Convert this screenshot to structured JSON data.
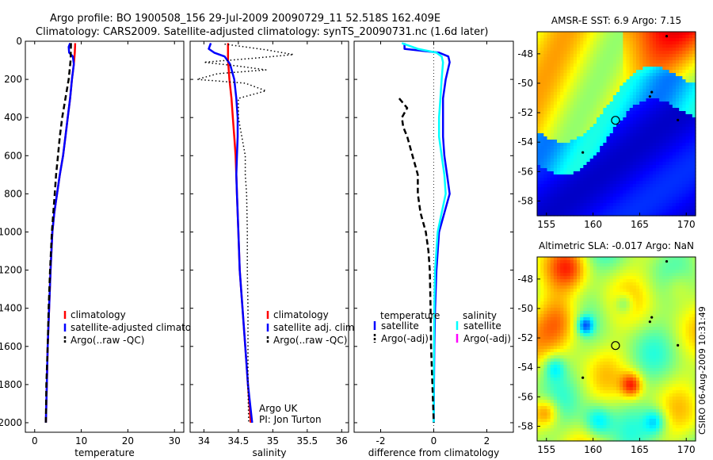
{
  "header": {
    "line1": "Argo profile: BO 1900508_156 29-Jul-2009 20090729_11 52.518S 162.409E",
    "line2": "Climatology: CARS2009. Satellite-adjusted climatology: synTS_20090731.nc (1.6d later)"
  },
  "side_label": "CSIRO 06-Aug-2009 10:31:49",
  "colors": {
    "climatology": "#ff0000",
    "satellite": "#0000ff",
    "satellite_salinity": "#00ffff",
    "argo": "#000000",
    "argo_adj_salinity": "#ff00ff"
  },
  "chart_data": [
    {
      "type": "line",
      "xlabel": "temperature",
      "xlim": [
        -2,
        32
      ],
      "ylim": [
        2050,
        0
      ],
      "y_reversed": true,
      "xticks": [
        "0",
        "10",
        "20",
        "30"
      ],
      "yticks": [
        "0",
        "200",
        "400",
        "600",
        "800",
        "1000",
        "1200",
        "1400",
        "1600",
        "1800",
        "2000"
      ],
      "legend": [
        "climatology",
        "satellite-adjusted climatology",
        "Argo(..raw -QC)"
      ],
      "series": [
        {
          "name": "climatology",
          "color": "#ff0000",
          "dash": "solid",
          "points": [
            [
              8.7,
              10
            ],
            [
              8.6,
              60
            ],
            [
              8.4,
              120
            ],
            [
              8.0,
              200
            ],
            [
              7.6,
              300
            ],
            [
              7.1,
              400
            ],
            [
              6.6,
              500
            ],
            [
              6.1,
              600
            ],
            [
              5.4,
              700
            ],
            [
              4.8,
              800
            ],
            [
              4.2,
              900
            ],
            [
              3.8,
              1000
            ],
            [
              3.4,
              1200
            ],
            [
              3.1,
              1400
            ],
            [
              2.8,
              1600
            ],
            [
              2.6,
              1800
            ],
            [
              2.4,
              2000
            ]
          ]
        },
        {
          "name": "satellite-adjusted climatology",
          "color": "#0000ff",
          "dash": "solid",
          "points": [
            [
              7.6,
              10
            ],
            [
              7.3,
              30
            ],
            [
              7.4,
              60
            ],
            [
              8.2,
              80
            ],
            [
              8.4,
              120
            ],
            [
              8.0,
              200
            ],
            [
              7.6,
              300
            ],
            [
              7.1,
              400
            ],
            [
              6.6,
              500
            ],
            [
              6.1,
              600
            ],
            [
              5.4,
              700
            ],
            [
              4.8,
              800
            ],
            [
              4.2,
              900
            ],
            [
              3.8,
              1000
            ],
            [
              3.4,
              1200
            ],
            [
              3.1,
              1400
            ],
            [
              2.8,
              1600
            ],
            [
              2.6,
              1800
            ],
            [
              2.4,
              2000
            ]
          ]
        },
        {
          "name": "Argo(..raw -QC)",
          "color": "#000000",
          "dash": "dashed",
          "points": [
            [
              7.8,
              10
            ],
            [
              7.7,
              100
            ],
            [
              7.3,
              200
            ],
            [
              6.6,
              300
            ],
            [
              5.9,
              400
            ],
            [
              5.4,
              500
            ],
            [
              5.0,
              600
            ],
            [
              4.6,
              700
            ],
            [
              4.3,
              800
            ],
            [
              4.0,
              900
            ],
            [
              3.7,
              1000
            ],
            [
              3.3,
              1200
            ],
            [
              3.0,
              1400
            ],
            [
              2.8,
              1600
            ],
            [
              2.5,
              1800
            ],
            [
              2.4,
              2000
            ]
          ]
        }
      ]
    },
    {
      "type": "line",
      "xlabel": "salinity",
      "xlim": [
        33.8,
        36.1
      ],
      "ylim": [
        2050,
        0
      ],
      "y_reversed": true,
      "xticks": [
        "34",
        "34.5",
        "35",
        "35.5",
        "36"
      ],
      "legend": [
        "climatology",
        "satellite adj. clim.",
        "Argo(..raw -QC)"
      ],
      "annotation": [
        "Argo UK",
        "PI: Jon Turton"
      ],
      "series": [
        {
          "name": "climatology",
          "color": "#ff0000",
          "dash": "solid",
          "points": [
            [
              34.35,
              10
            ],
            [
              34.35,
              100
            ],
            [
              34.37,
              200
            ],
            [
              34.4,
              300
            ],
            [
              34.42,
              400
            ],
            [
              34.44,
              500
            ],
            [
              34.46,
              600
            ],
            [
              34.47,
              700
            ],
            [
              34.48,
              800
            ],
            [
              34.5,
              1000
            ],
            [
              34.52,
              1200
            ],
            [
              34.56,
              1400
            ],
            [
              34.6,
              1600
            ],
            [
              34.64,
              1800
            ],
            [
              34.68,
              2000
            ]
          ]
        },
        {
          "name": "satellite adj. clim.",
          "color": "#0000ff",
          "dash": "solid",
          "points": [
            [
              34.1,
              10
            ],
            [
              34.07,
              40
            ],
            [
              34.15,
              60
            ],
            [
              34.3,
              80
            ],
            [
              34.38,
              120
            ],
            [
              34.44,
              200
            ],
            [
              34.47,
              300
            ],
            [
              34.49,
              400
            ],
            [
              34.49,
              500
            ],
            [
              34.48,
              600
            ],
            [
              34.47,
              700
            ],
            [
              34.48,
              800
            ],
            [
              34.5,
              1000
            ],
            [
              34.52,
              1200
            ],
            [
              34.56,
              1400
            ],
            [
              34.6,
              1600
            ],
            [
              34.64,
              1800
            ],
            [
              34.7,
              2000
            ]
          ]
        },
        {
          "name": "Argo(..raw -QC)",
          "color": "#000000",
          "dash": "dotted",
          "points": [
            [
              34.3,
              15
            ],
            [
              34.6,
              30
            ],
            [
              34.9,
              45
            ],
            [
              35.3,
              70
            ],
            [
              34.7,
              90
            ],
            [
              34.0,
              110
            ],
            [
              34.5,
              130
            ],
            [
              34.9,
              150
            ],
            [
              34.2,
              170
            ],
            [
              33.9,
              200
            ],
            [
              34.6,
              220
            ],
            [
              34.9,
              260
            ],
            [
              34.5,
              300
            ],
            [
              34.5,
              400
            ],
            [
              34.55,
              500
            ],
            [
              34.6,
              600
            ],
            [
              34.6,
              700
            ],
            [
              34.62,
              800
            ],
            [
              34.63,
              1000
            ],
            [
              34.63,
              1200
            ],
            [
              34.64,
              1400
            ],
            [
              34.64,
              1600
            ],
            [
              34.64,
              1800
            ],
            [
              34.65,
              2000
            ]
          ]
        }
      ]
    },
    {
      "type": "line",
      "xlabel": "difference from climatology",
      "xlim": [
        -3.0,
        3.0
      ],
      "ylim": [
        2050,
        0
      ],
      "y_reversed": true,
      "xticks": [
        "-2",
        "0",
        "2"
      ],
      "legend_titles": [
        "temperature",
        "salinity"
      ],
      "legend": [
        [
          "satellite",
          "Argo(-adj)"
        ],
        [
          "satellite",
          "Argo(-adj)"
        ]
      ],
      "series": [
        {
          "name": "satellite",
          "group": "temperature",
          "color": "#0000ff",
          "dash": "solid",
          "points": [
            [
              -1.1,
              10
            ],
            [
              -1.1,
              40
            ],
            [
              0.2,
              60
            ],
            [
              0.55,
              80
            ],
            [
              0.6,
              110
            ],
            [
              0.45,
              200
            ],
            [
              0.35,
              300
            ],
            [
              0.35,
              400
            ],
            [
              0.35,
              500
            ],
            [
              0.4,
              600
            ],
            [
              0.5,
              700
            ],
            [
              0.6,
              800
            ],
            [
              0.4,
              900
            ],
            [
              0.2,
              1000
            ],
            [
              0.1,
              1200
            ],
            [
              0.05,
              1400
            ],
            [
              0.02,
              1600
            ],
            [
              0.01,
              1800
            ],
            [
              0.0,
              2000
            ]
          ]
        },
        {
          "name": "satellite",
          "group": "salinity",
          "color": "#00ffff",
          "dash": "solid",
          "points": [
            [
              -1.2,
              10
            ],
            [
              -0.6,
              40
            ],
            [
              0.1,
              60
            ],
            [
              0.3,
              80
            ],
            [
              0.35,
              110
            ],
            [
              0.3,
              200
            ],
            [
              0.25,
              300
            ],
            [
              0.2,
              400
            ],
            [
              0.2,
              500
            ],
            [
              0.3,
              600
            ],
            [
              0.4,
              700
            ],
            [
              0.45,
              800
            ],
            [
              0.3,
              900
            ],
            [
              0.15,
              1000
            ],
            [
              0.05,
              1200
            ],
            [
              0.02,
              1400
            ],
            [
              0.01,
              1600
            ],
            [
              0.0,
              1800
            ],
            [
              0.0,
              2000
            ]
          ]
        },
        {
          "name": "Argo(-adj)",
          "group": "temperature",
          "color": "#000000",
          "dash": "dashed",
          "points": [
            [
              -1.3,
              300
            ],
            [
              -1.0,
              350
            ],
            [
              -1.2,
              400
            ],
            [
              -1.15,
              450
            ],
            [
              -1.0,
              500
            ],
            [
              -0.8,
              600
            ],
            [
              -0.6,
              700
            ],
            [
              -0.6,
              800
            ],
            [
              -0.5,
              900
            ],
            [
              -0.3,
              1000
            ],
            [
              -0.2,
              1100
            ],
            [
              -0.15,
              1200
            ],
            [
              -0.12,
              1400
            ],
            [
              -0.1,
              1600
            ],
            [
              -0.05,
              1800
            ],
            [
              0.0,
              2000
            ]
          ]
        },
        {
          "name": "Argo(-adj)",
          "group": "salinity",
          "color": "#ff00ff",
          "dash": "solid",
          "points": []
        }
      ],
      "zero_line": 0
    },
    {
      "type": "heatmap",
      "title": "AMSR-E SST: 6.9 Argo: 7.15",
      "xticks": [
        "155",
        "160",
        "165",
        "170"
      ],
      "yticks": [
        "-48",
        "-50",
        "-52",
        "-54",
        "-56",
        "-58"
      ],
      "xlim": [
        154,
        171
      ],
      "ylim": [
        -59,
        -46.5
      ],
      "marker": {
        "lon": 162.409,
        "lat": -52.518
      }
    },
    {
      "type": "heatmap",
      "title": "Altimetric SLA: -0.017 Argo: NaN",
      "xticks": [
        "155",
        "160",
        "165",
        "170"
      ],
      "yticks": [
        "-48",
        "-50",
        "-52",
        "-54",
        "-56",
        "-58"
      ],
      "xlim": [
        154,
        171
      ],
      "ylim": [
        -59,
        -46.5
      ],
      "marker": {
        "lon": 162.409,
        "lat": -52.518
      }
    }
  ]
}
